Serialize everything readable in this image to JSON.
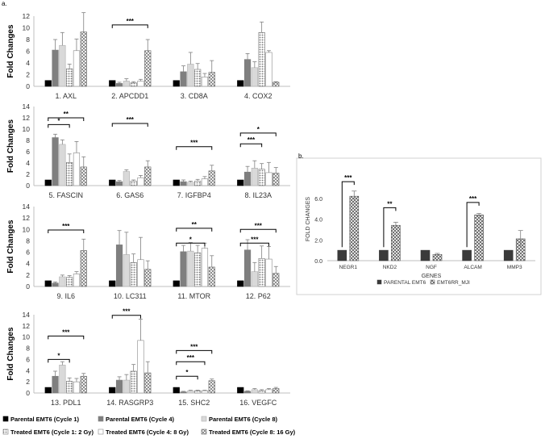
{
  "panel_a_label": "a.",
  "panel_b_label": "b.",
  "legend_a": [
    {
      "label": "Parental EMT6 (Cycle 1)",
      "fill": "#000000",
      "pattern": "none"
    },
    {
      "label": "Parental EMT6 (Cycle 4)",
      "fill": "#7f7f7f",
      "pattern": "none"
    },
    {
      "label": "Parental EMT6 (Cycle 8)",
      "fill": "#d9d9d9",
      "pattern": "none"
    },
    {
      "label": "Treated EMT6 (Cycle 1: 2 Gy)",
      "fill": "#ffffff",
      "pattern": "dots"
    },
    {
      "label": "Treated EMT6 (Cycle 4: 8 Gy)",
      "fill": "#ffffff",
      "pattern": "none"
    },
    {
      "label": "Treated EMT6 (Cycle 8: 16 Gy)",
      "fill": "#ffffff",
      "pattern": "cross"
    }
  ],
  "colors": {
    "axis": "#bfbfbf",
    "bar1": "#000000",
    "bar2": "#7f7f7f",
    "bar3": "#d9d9d9",
    "bar4": "#ffffff",
    "bar5": "#ffffff",
    "bar6": "#ffffff",
    "error": "#808080",
    "bracket": "#000000"
  },
  "chart_data": [
    {
      "type": "bar",
      "id": "panel-a",
      "ylabel": "Fold Changes",
      "series_names": [
        "Parental EMT6 (Cycle 1)",
        "Parental EMT6 (Cycle 4)",
        "Parental EMT6 (Cycle 8)",
        "Treated EMT6 (Cycle 1: 2 Gy)",
        "Treated EMT6 (Cycle 4: 8 Gy)",
        "Treated EMT6 (Cycle 8: 16 Gy)"
      ],
      "rows": [
        {
          "ylim": [
            0,
            12
          ],
          "ticks": [
            0,
            2,
            4,
            6,
            8,
            10,
            12
          ],
          "groups": [
            {
              "label": "1. AXL",
              "values": [
                1,
                6.2,
                7,
                3,
                6.1,
                9.3
              ],
              "errors": [
                0,
                1.8,
                2.2,
                0.8,
                2.0,
                3.3
              ],
              "sig": []
            },
            {
              "label": "2. APCDD1",
              "values": [
                1,
                0.5,
                0.9,
                0.6,
                0.9,
                6.1
              ],
              "errors": [
                0,
                0.2,
                0.4,
                0.2,
                0.3,
                1.9
              ],
              "sig": [
                {
                  "from": 0,
                  "to": 5,
                  "text": "***",
                  "y": 10.5
                }
              ]
            },
            {
              "label": "3. CD8A",
              "values": [
                1,
                2.5,
                3.8,
                2.9,
                1.6,
                2.4
              ],
              "errors": [
                0,
                1.0,
                2.0,
                1.0,
                0.6,
                2.0
              ],
              "sig": []
            },
            {
              "label": "4. COX2",
              "values": [
                1,
                4.6,
                3.2,
                9.2,
                5.8,
                0.7
              ],
              "errors": [
                0,
                1.0,
                1.0,
                1.8,
                0.3,
                0.1
              ],
              "sig": []
            }
          ]
        },
        {
          "ylim": [
            0,
            14
          ],
          "ticks": [
            0,
            2,
            4,
            6,
            8,
            10,
            12,
            14
          ],
          "groups": [
            {
              "label": "5. FASCIN",
              "values": [
                1,
                8.5,
                7.3,
                4.1,
                5.8,
                3.3
              ],
              "errors": [
                0,
                0.6,
                0.8,
                1.5,
                2.0,
                1.8
              ],
              "sig": [
                {
                  "from": 0,
                  "to": 5,
                  "text": "**",
                  "y": 12.0
                },
                {
                  "from": 0,
                  "to": 3,
                  "text": "*",
                  "y": 10.8
                }
              ]
            },
            {
              "label": "6. GAS6",
              "values": [
                1,
                0.7,
                2.5,
                0.8,
                1.4,
                3.3
              ],
              "errors": [
                0,
                0.2,
                0.3,
                0.2,
                0.4,
                1.1
              ],
              "sig": [
                {
                  "from": 0,
                  "to": 5,
                  "text": "***",
                  "y": 11.0
                }
              ]
            },
            {
              "label": "7. IGFBP4",
              "values": [
                1,
                0.7,
                0.6,
                0.8,
                1.2,
                2.6
              ],
              "errors": [
                0,
                0.3,
                0.2,
                0.3,
                0.4,
                1.0
              ],
              "sig": [
                {
                  "from": 0,
                  "to": 5,
                  "text": "***",
                  "y": 6.9
                }
              ]
            },
            {
              "label": "8. IL23A",
              "values": [
                1,
                2.4,
                3.1,
                2.9,
                2.3,
                2.2
              ],
              "errors": [
                0,
                1.0,
                1.3,
                1.0,
                1.8,
                1.0
              ],
              "sig": [
                {
                  "from": 0,
                  "to": 5,
                  "text": "*",
                  "y": 9.3
                },
                {
                  "from": 0,
                  "to": 3,
                  "text": "***",
                  "y": 7.4
                }
              ]
            }
          ]
        },
        {
          "ylim": [
            0,
            14
          ],
          "ticks": [
            0,
            2,
            4,
            6,
            8,
            10,
            12,
            14
          ],
          "groups": [
            {
              "label": "9. IL6",
              "values": [
                1,
                0.6,
                1.7,
                1.6,
                2.2,
                6.3
              ],
              "errors": [
                0,
                0.2,
                0.3,
                0.3,
                0.4,
                2.0
              ],
              "sig": [
                {
                  "from": 0,
                  "to": 5,
                  "text": "***",
                  "y": 9.9
                }
              ]
            },
            {
              "label": "10. LC311",
              "values": [
                1,
                7.3,
                5.6,
                4.2,
                4.7,
                3.0
              ],
              "errors": [
                0,
                2.5,
                3.9,
                1.5,
                3.9,
                1.5
              ],
              "sig": []
            },
            {
              "label": "11. MTOR",
              "values": [
                1,
                6.1,
                6.2,
                5.9,
                6.7,
                3.4
              ],
              "errors": [
                0,
                1.1,
                1.5,
                1.3,
                0.9,
                2.0
              ],
              "sig": [
                {
                  "from": 0,
                  "to": 5,
                  "text": "**",
                  "y": 10.2
                },
                {
                  "from": 0,
                  "to": 4,
                  "text": "*",
                  "y": 7.6
                }
              ]
            },
            {
              "label": "12. P62",
              "values": [
                1,
                6.4,
                2.6,
                4.9,
                4.8,
                2.3
              ],
              "errors": [
                0,
                1.8,
                1.6,
                2.2,
                2.2,
                1.2
              ],
              "sig": [
                {
                  "from": 0,
                  "to": 5,
                  "text": "***",
                  "y": 10.0
                },
                {
                  "from": 0,
                  "to": 4,
                  "text": "***",
                  "y": 7.6
                }
              ]
            }
          ]
        },
        {
          "ylim": [
            0,
            14
          ],
          "ticks": [
            0,
            2,
            4,
            6,
            8,
            10,
            12,
            14
          ],
          "groups": [
            {
              "label": "13. PDL1",
              "values": [
                1,
                3.0,
                5.0,
                2.1,
                2.0,
                3.0
              ],
              "errors": [
                0,
                0.9,
                0.6,
                0.6,
                0.6,
                0.5
              ],
              "sig": [
                {
                  "from": 0,
                  "to": 5,
                  "text": "***",
                  "y": 10.2
                },
                {
                  "from": 0,
                  "to": 3,
                  "text": "*",
                  "y": 6.0
                }
              ]
            },
            {
              "label": "14. RASGRP3",
              "values": [
                1,
                2.3,
                2.3,
                3.9,
                9.4,
                3.6
              ],
              "errors": [
                0,
                0.6,
                1.0,
                1.2,
                3.8,
                2.0
              ],
              "sig": [
                {
                  "from": 0,
                  "to": 4,
                  "text": "***",
                  "y": 13.9
                }
              ]
            },
            {
              "label": "15. SHC2",
              "values": [
                1,
                0.2,
                0.4,
                0.4,
                0.4,
                2.2
              ],
              "errors": [
                0,
                0.1,
                0.1,
                0.1,
                0.1,
                0.3
              ],
              "sig": [
                {
                  "from": 0,
                  "to": 5,
                  "text": "***",
                  "y": 7.6
                },
                {
                  "from": 0,
                  "to": 4,
                  "text": "***",
                  "y": 5.6
                },
                {
                  "from": 0,
                  "to": 3,
                  "text": "*",
                  "y": 3.0
                }
              ]
            },
            {
              "label": "16. VEGFC",
              "values": [
                1,
                0.3,
                0.6,
                0.4,
                0.6,
                0.8
              ],
              "errors": [
                0,
                0.1,
                0.2,
                0.2,
                0.2,
                0.2
              ],
              "sig": []
            }
          ]
        }
      ]
    },
    {
      "type": "bar",
      "id": "panel-b",
      "xlabel": "GENES",
      "ylabel": "FOLD CHANGES",
      "ylim": [
        0,
        8.0
      ],
      "ticks": [
        "0.0",
        "2.0",
        "4.0",
        "6.0"
      ],
      "categories": [
        "NEGR1",
        "NKD2",
        "NGF",
        "ALCAM",
        "MMP3"
      ],
      "series": [
        {
          "name": "PARENTAL EMT6",
          "values": [
            1.0,
            1.0,
            1.0,
            1.0,
            1.0
          ],
          "errors": [
            0,
            0,
            0,
            0,
            0
          ]
        },
        {
          "name": "EMT6RR_MJI",
          "values": [
            6.2,
            3.4,
            0.6,
            4.4,
            2.1
          ],
          "errors": [
            0.5,
            0.3,
            0.1,
            0.15,
            0.8
          ]
        }
      ],
      "sig": [
        {
          "category": 0,
          "text": "***",
          "y": 7.6
        },
        {
          "category": 1,
          "text": "**",
          "y": 5.1
        },
        {
          "category": 3,
          "text": "***",
          "y": 5.6
        }
      ]
    }
  ]
}
